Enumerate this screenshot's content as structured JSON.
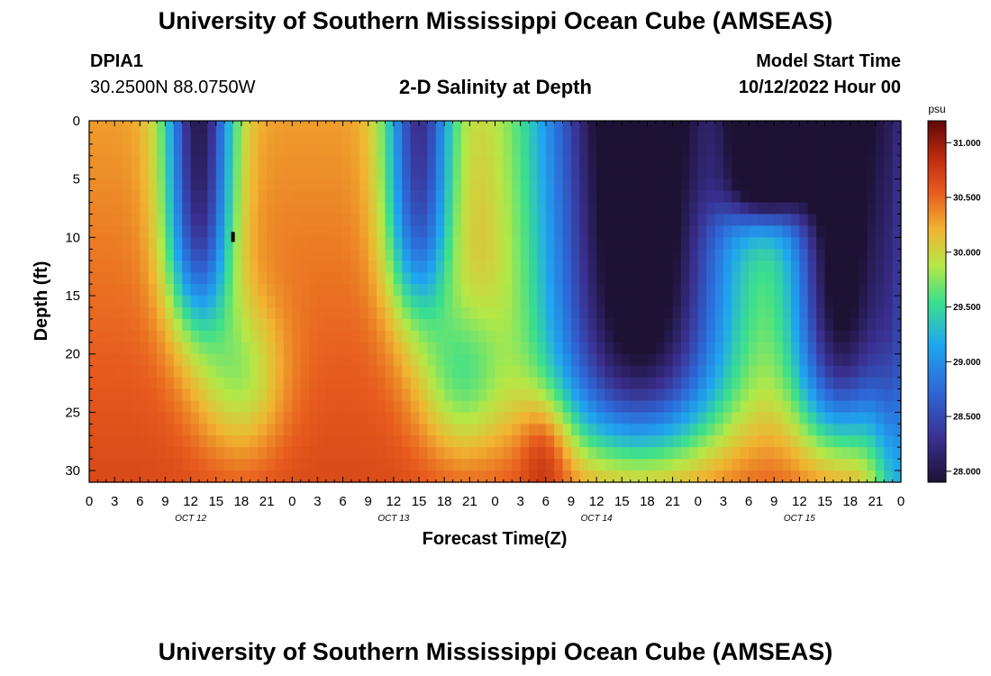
{
  "header": {
    "title": "University of Southern Mississippi Ocean Cube (AMSEAS)",
    "title_repeat": "University of Southern Mississippi Ocean Cube (AMSEAS)",
    "station_id": "DPIA1",
    "station_coords": "30.2500N  88.0750W",
    "plot_title": "2-D Salinity at Depth",
    "model_start_label": "Model Start Time",
    "model_start_value": "10/12/2022 Hour 00"
  },
  "chart_data": {
    "type": "heatmap",
    "title": "2-D Salinity at Depth",
    "xlabel": "Forecast Time(Z)",
    "ylabel": "Depth (ft)",
    "x_tick_labels": [
      "0",
      "3",
      "6",
      "9",
      "12",
      "15",
      "18",
      "21",
      "0",
      "3",
      "6",
      "9",
      "12",
      "15",
      "18",
      "21",
      "0",
      "3",
      "6",
      "9",
      "12",
      "15",
      "18",
      "21",
      "0",
      "3",
      "6",
      "9",
      "12",
      "15",
      "18",
      "21",
      "0"
    ],
    "day_labels": [
      {
        "label": "OCT 12",
        "hour": 12
      },
      {
        "label": "OCT 13",
        "hour": 36
      },
      {
        "label": "OCT 14",
        "hour": 60
      },
      {
        "label": "OCT 15",
        "hour": 84
      }
    ],
    "x_range_hours": [
      0,
      96
    ],
    "y_range_ft": [
      0,
      31
    ],
    "y_ticks": [
      0,
      5,
      10,
      15,
      20,
      25,
      30
    ],
    "colorbar": {
      "unit": "psu",
      "min": 27.9,
      "max": 31.2,
      "tick_values": [
        28.0,
        28.5,
        29.0,
        29.5,
        30.0,
        30.5,
        31.0
      ],
      "tick_labels": [
        "28.000",
        "28.500",
        "29.000",
        "29.500",
        "30.000",
        "30.500",
        "31.000"
      ]
    },
    "marker": {
      "hour": 17,
      "depth_ft": 10
    }
  }
}
